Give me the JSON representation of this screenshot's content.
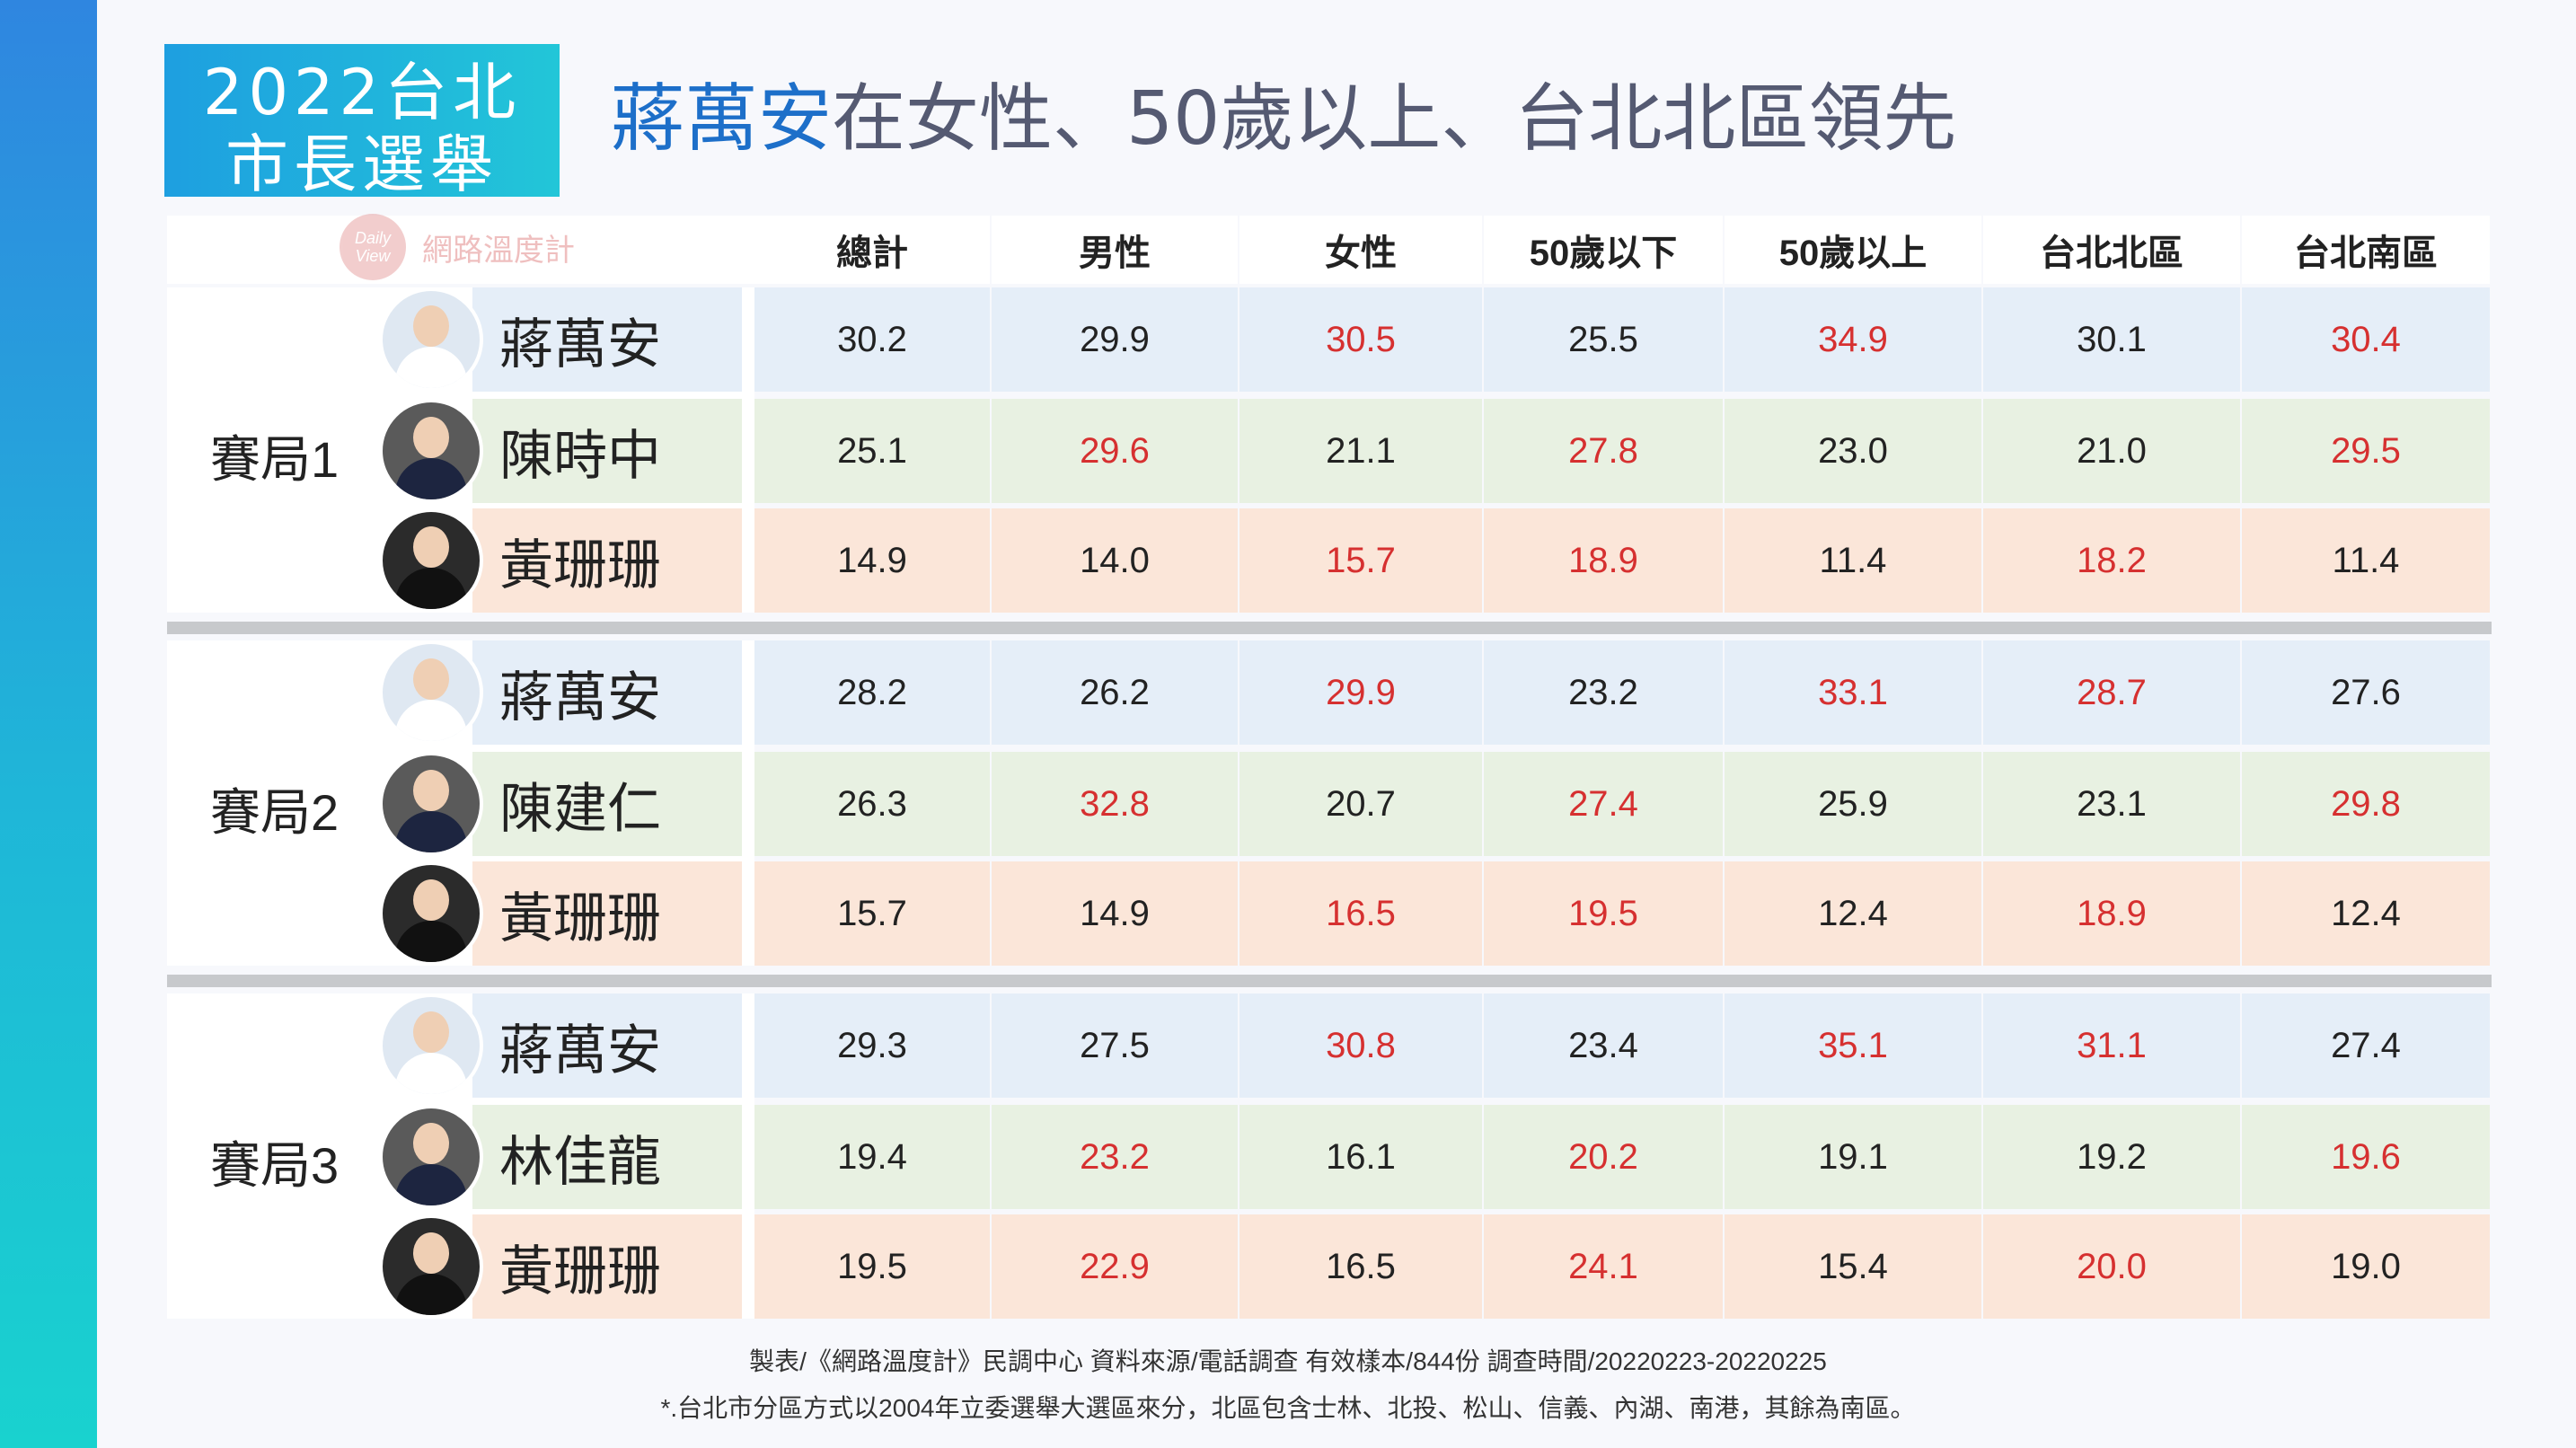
{
  "badge": {
    "line1": "2022台北",
    "line2": "市長選舉"
  },
  "headline": {
    "highlight": "蔣萬安",
    "rest": "在女性、50歲以上、台北北區領先"
  },
  "logo": {
    "mark": "Daily View",
    "text": "網路溫度計"
  },
  "columns": [
    "總計",
    "男性",
    "女性",
    "50歲以下",
    "50歲以上",
    "台北北區",
    "台北南區"
  ],
  "groups": [
    {
      "label": "賽局1",
      "candidates": [
        {
          "name": "蔣萬安",
          "color": "blue",
          "values": [
            "30.2",
            "29.9",
            "30.5",
            "25.5",
            "34.9",
            "30.1",
            "30.4"
          ],
          "red": [
            false,
            false,
            true,
            false,
            true,
            false,
            true
          ]
        },
        {
          "name": "陳時中",
          "color": "green",
          "values": [
            "25.1",
            "29.6",
            "21.1",
            "27.8",
            "23.0",
            "21.0",
            "29.5"
          ],
          "red": [
            false,
            true,
            false,
            true,
            false,
            false,
            true
          ]
        },
        {
          "name": "黃珊珊",
          "color": "peach",
          "values": [
            "14.9",
            "14.0",
            "15.7",
            "18.9",
            "11.4",
            "18.2",
            "11.4"
          ],
          "red": [
            false,
            false,
            true,
            true,
            false,
            true,
            false
          ]
        }
      ]
    },
    {
      "label": "賽局2",
      "candidates": [
        {
          "name": "蔣萬安",
          "color": "blue",
          "values": [
            "28.2",
            "26.2",
            "29.9",
            "23.2",
            "33.1",
            "28.7",
            "27.6"
          ],
          "red": [
            false,
            false,
            true,
            false,
            true,
            true,
            false
          ]
        },
        {
          "name": "陳建仁",
          "color": "green",
          "values": [
            "26.3",
            "32.8",
            "20.7",
            "27.4",
            "25.9",
            "23.1",
            "29.8"
          ],
          "red": [
            false,
            true,
            false,
            true,
            false,
            false,
            true
          ]
        },
        {
          "name": "黃珊珊",
          "color": "peach",
          "values": [
            "15.7",
            "14.9",
            "16.5",
            "19.5",
            "12.4",
            "18.9",
            "12.4"
          ],
          "red": [
            false,
            false,
            true,
            true,
            false,
            true,
            false
          ]
        }
      ]
    },
    {
      "label": "賽局3",
      "candidates": [
        {
          "name": "蔣萬安",
          "color": "blue",
          "values": [
            "29.3",
            "27.5",
            "30.8",
            "23.4",
            "35.1",
            "31.1",
            "27.4"
          ],
          "red": [
            false,
            false,
            true,
            false,
            true,
            true,
            false
          ]
        },
        {
          "name": "林佳龍",
          "color": "green",
          "values": [
            "19.4",
            "23.2",
            "16.1",
            "20.2",
            "19.1",
            "19.2",
            "19.6"
          ],
          "red": [
            false,
            true,
            false,
            true,
            false,
            false,
            true
          ]
        },
        {
          "name": "黃珊珊",
          "color": "peach",
          "values": [
            "19.5",
            "22.9",
            "16.5",
            "24.1",
            "15.4",
            "20.0",
            "19.0"
          ],
          "red": [
            false,
            true,
            false,
            true,
            false,
            true,
            false
          ]
        }
      ]
    }
  ],
  "footnotes": [
    "製表/《網路溫度計》民調中心  資料來源/電話調查  有效樣本/844份  調查時間/20220223-20220225",
    "*.台北市分區方式以2004年立委選舉大選區來分，北區包含士林、北投、松山、信義、內湖、南港，其餘為南區。"
  ]
}
